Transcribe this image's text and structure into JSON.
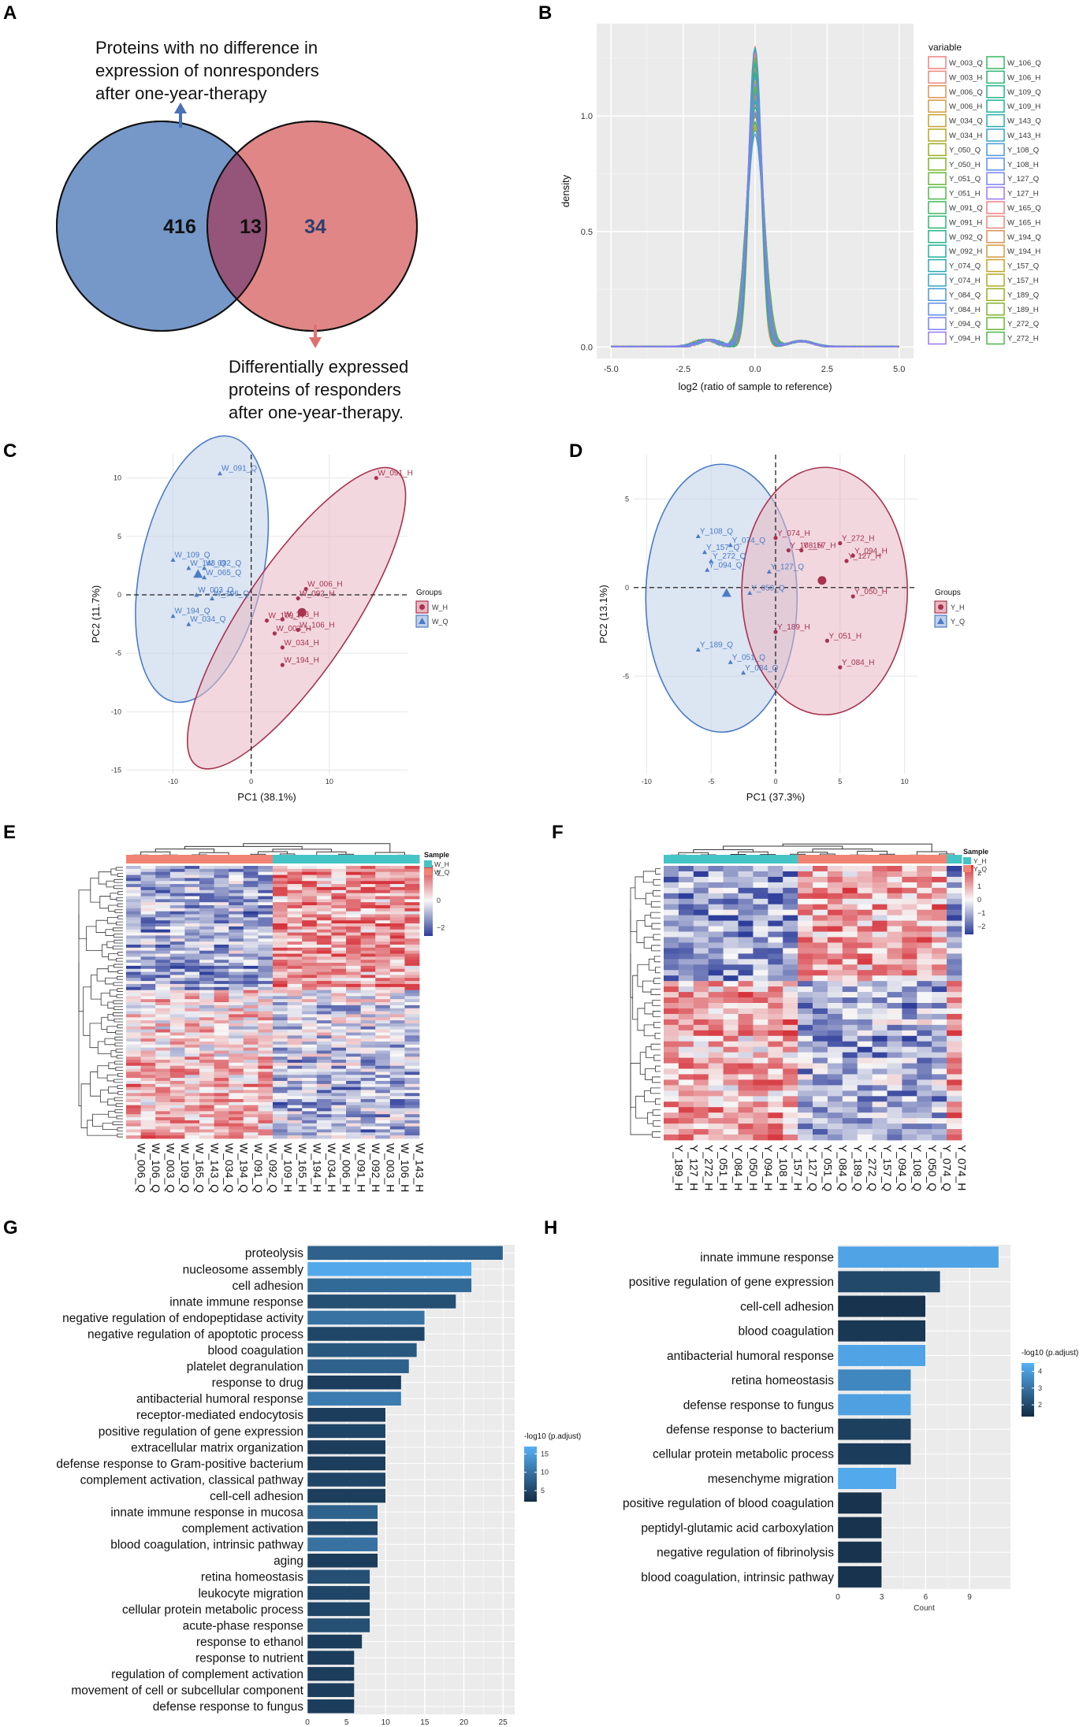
{
  "figure": {
    "panel_labels": [
      "A",
      "B",
      "C",
      "D",
      "E",
      "F",
      "G",
      "H"
    ]
  },
  "chart_data": [
    {
      "panel": "A",
      "type": "venn",
      "sets": [
        {
          "name": "nonresponders_no_difference",
          "label": "Proteins with no difference in expression of nonresponders after one-year-therapy",
          "color": "#7598c9"
        },
        {
          "name": "responders_DE",
          "label": "Differentially expressed proteins of responders after one-year-therapy.",
          "color": "#e08686"
        }
      ],
      "label_lines": {
        "top": [
          "Proteins with no difference in",
          "expression of nonresponders",
          "after one-year-therapy"
        ],
        "bottom": [
          "Differentially expressed",
          "proteins of responders",
          "after one-year-therapy."
        ]
      },
      "counts": {
        "left_only": 416,
        "overlap": 13,
        "right_only": 34
      }
    },
    {
      "panel": "B",
      "type": "line",
      "xlabel": "log2 (ratio of sample to reference)",
      "ylabel": "density",
      "xticks": [
        -5.0,
        -2.5,
        0.0,
        2.5,
        5.0
      ],
      "xtick_labels": [
        "-5.0",
        "-2.5",
        "0.0",
        "2.5",
        "5.0"
      ],
      "yticks": [
        0.0,
        0.5,
        1.0
      ],
      "ytick_labels": [
        "0.0",
        "0.5",
        "1.0"
      ],
      "xlim": [
        -5.5,
        5.5
      ],
      "ylim": [
        -0.05,
        1.4
      ],
      "legend_title": "variable",
      "legend_col1": [
        "W_003_Q",
        "W_003_H",
        "W_006_Q",
        "W_006_H",
        "W_034_Q",
        "W_034_H",
        "Y_050_Q",
        "Y_050_H",
        "Y_051_Q",
        "Y_051_H",
        "W_091_Q",
        "W_091_H",
        "W_092_Q",
        "W_092_H",
        "Y_074_Q",
        "Y_074_H",
        "Y_084_Q",
        "Y_084_H",
        "Y_094_Q",
        "Y_094_H"
      ],
      "legend_col2": [
        "W_106_Q",
        "W_106_H",
        "W_109_Q",
        "W_109_H",
        "W_143_Q",
        "W_143_H",
        "Y_108_Q",
        "Y_108_H",
        "Y_127_Q",
        "Y_127_H",
        "W_165_Q",
        "W_165_H",
        "W_194_Q",
        "W_194_H",
        "Y_157_Q",
        "Y_157_H",
        "Y_189_Q",
        "Y_189_H",
        "Y_272_Q",
        "Y_272_H"
      ],
      "legend_colors": [
        "#f08080",
        "#e8857a",
        "#dd9155",
        "#d49a3e",
        "#c4a22c",
        "#b0a920",
        "#99ad1f",
        "#82b228",
        "#68b633",
        "#4fb84a",
        "#39b85d",
        "#2bb672",
        "#22b487",
        "#20b09a",
        "#28aab0",
        "#34a3c4",
        "#4699d8",
        "#5c8de8",
        "#7a82ef",
        "#9a78ee"
      ],
      "peak_heights": [
        1.3,
        1.2,
        1.05,
        1.28,
        1.1,
        0.95,
        1.22,
        1.15,
        1.0,
        1.26,
        1.12,
        0.98,
        1.3,
        1.18,
        1.06,
        1.24,
        1.08,
        0.92,
        1.2,
        1.14,
        1.02,
        1.27,
        1.16,
        0.96,
        1.21,
        1.09,
        1.0,
        1.25,
        1.13,
        0.97,
        1.19,
        1.11,
        1.04,
        1.23,
        1.07,
        0.94,
        1.17,
        1.29,
        1.01,
        1.1
      ],
      "peak_center": 0.0
    },
    {
      "panel": "C",
      "type": "scatter",
      "xlabel": "PC1 (38.1%)",
      "ylabel": "PC2 (11.7%)",
      "xticks": [
        -10,
        0,
        10
      ],
      "xtick_labels": [
        "-10",
        "0",
        "10"
      ],
      "yticks": [
        10,
        5,
        0,
        -5,
        -10,
        -15
      ],
      "ytick_labels": [
        "10",
        "5",
        "0",
        "-5",
        "-10",
        "-15"
      ],
      "xlim": [
        -16,
        20
      ],
      "ylim": [
        -15.3,
        12
      ],
      "legend_title": "Groups",
      "groups": [
        {
          "name": "W_H",
          "color": "#a8324f",
          "fill": "#e8b8c2"
        },
        {
          "name": "W_Q",
          "color": "#4a7cc7",
          "fill": "#c0cfe8"
        }
      ],
      "points": [
        {
          "label": "W_091_Q",
          "x": -4,
          "y": 10.4,
          "group": "W_Q"
        },
        {
          "label": "W_109_Q",
          "x": -10,
          "y": 3,
          "group": "W_Q"
        },
        {
          "label": "W_143_Q",
          "x": -8,
          "y": 2.3,
          "group": "W_Q"
        },
        {
          "label": "W_092_Q",
          "x": -6,
          "y": 2.3,
          "group": "W_Q"
        },
        {
          "label": "W_065_Q",
          "x": -6,
          "y": 1.5,
          "group": "W_Q"
        },
        {
          "label": "W_003_Q",
          "x": -7,
          "y": 0,
          "group": "W_Q"
        },
        {
          "label": "W_106_Q",
          "x": -5,
          "y": -0.3,
          "group": "W_Q"
        },
        {
          "label": "W_194_Q",
          "x": -10,
          "y": -1.8,
          "group": "W_Q"
        },
        {
          "label": "W_034_Q",
          "x": -8,
          "y": -2.5,
          "group": "W_Q"
        },
        {
          "label": "W_091_H",
          "x": 16,
          "y": 10,
          "group": "W_H"
        },
        {
          "label": "W_006_H",
          "x": 7,
          "y": 0.5,
          "group": "W_H"
        },
        {
          "label": "W_092_H",
          "x": 6,
          "y": -0.3,
          "group": "W_H"
        },
        {
          "label": "W_109_H",
          "x": 2,
          "y": -2.2,
          "group": "W_H"
        },
        {
          "label": "W_143_H",
          "x": 4,
          "y": -2.1,
          "group": "W_H"
        },
        {
          "label": "W_106_H",
          "x": 6,
          "y": -3,
          "group": "W_H"
        },
        {
          "label": "W_003_H",
          "x": 3,
          "y": -3.3,
          "group": "W_H"
        },
        {
          "label": "W_034_H",
          "x": 4,
          "y": -4.5,
          "group": "W_H"
        },
        {
          "label": "W_194_H",
          "x": 4,
          "y": -6,
          "group": "W_H"
        }
      ],
      "centroids": [
        {
          "group": "W_Q",
          "x": -6.8,
          "y": 1.8
        },
        {
          "group": "W_H",
          "x": 6.5,
          "y": -1.5
        }
      ]
    },
    {
      "panel": "D",
      "type": "scatter",
      "xlabel": "PC1 (37.3%)",
      "ylabel": "PC2 (13.1%)",
      "xticks": [
        -10,
        -5,
        0,
        5,
        10
      ],
      "xtick_labels": [
        "-10",
        "-5",
        "0",
        "5",
        "10"
      ],
      "yticks": [
        5,
        0,
        -5
      ],
      "ytick_labels": [
        "5",
        "0",
        "-5"
      ],
      "xlim": [
        -11,
        11
      ],
      "ylim": [
        -10.5,
        7.5
      ],
      "legend_title": "Groups",
      "groups": [
        {
          "name": "Y_H",
          "color": "#a8324f",
          "fill": "#e8b8c2"
        },
        {
          "name": "Y_Q",
          "color": "#4a7cc7",
          "fill": "#c0cfe8"
        }
      ],
      "points": [
        {
          "label": "Y_108_Q",
          "x": -6,
          "y": 2.9,
          "group": "Y_Q"
        },
        {
          "label": "Y_074_Q",
          "x": -3.5,
          "y": 2.4,
          "group": "Y_Q"
        },
        {
          "label": "Y_157_Q",
          "x": -5.5,
          "y": 2,
          "group": "Y_Q"
        },
        {
          "label": "Y_272_Q",
          "x": -5,
          "y": 1.5,
          "group": "Y_Q"
        },
        {
          "label": "Y_094_Q",
          "x": -5.3,
          "y": 1,
          "group": "Y_Q"
        },
        {
          "label": "Y_127_Q",
          "x": -0.5,
          "y": 0.9,
          "group": "Y_Q"
        },
        {
          "label": "Y_050_Q",
          "x": -2,
          "y": -0.3,
          "group": "Y_Q"
        },
        {
          "label": "Y_189_Q",
          "x": -6,
          "y": -3.5,
          "group": "Y_Q"
        },
        {
          "label": "Y_051_Q",
          "x": -3.5,
          "y": -4.2,
          "group": "Y_Q"
        },
        {
          "label": "Y_084_Q",
          "x": -2.5,
          "y": -4.8,
          "group": "Y_Q"
        },
        {
          "label": "Y_074_H",
          "x": 0,
          "y": 2.8,
          "group": "Y_H"
        },
        {
          "label": "Y_108_H",
          "x": 1,
          "y": 2.1,
          "group": "Y_H"
        },
        {
          "label": "Y_157_H",
          "x": 2,
          "y": 2.1,
          "group": "Y_H"
        },
        {
          "label": "Y_272_H",
          "x": 5,
          "y": 2.5,
          "group": "Y_H"
        },
        {
          "label": "Y_094_H",
          "x": 6,
          "y": 1.8,
          "group": "Y_H"
        },
        {
          "label": "Y_127_H",
          "x": 5.5,
          "y": 1.5,
          "group": "Y_H"
        },
        {
          "label": "Y_050_H",
          "x": 6,
          "y": -0.5,
          "group": "Y_H"
        },
        {
          "label": "Y_189_H",
          "x": 0,
          "y": -2.5,
          "group": "Y_H"
        },
        {
          "label": "Y_051_H",
          "x": 4,
          "y": -3,
          "group": "Y_H"
        },
        {
          "label": "Y_084_H",
          "x": 5,
          "y": -4.5,
          "group": "Y_H"
        }
      ],
      "centroids": [
        {
          "group": "Y_Q",
          "x": -3.8,
          "y": -0.3
        },
        {
          "group": "Y_H",
          "x": 3.6,
          "y": 0.4
        }
      ]
    },
    {
      "panel": "E",
      "type": "heatmap",
      "legend_title": "Sample",
      "scale_ticks": [
        2,
        0,
        -2
      ],
      "scale_tick_labels": [
        "2",
        "0",
        "−2"
      ],
      "annotation_legend": [
        {
          "name": "W_H",
          "color": "#45c4c6"
        },
        {
          "name": "W_Q",
          "color": "#f08374"
        }
      ],
      "columns": [
        "W_006_Q",
        "W_106_Q",
        "W_003_Q",
        "W_109_Q",
        "W_165_Q",
        "W_143_Q",
        "W_034_Q",
        "W_194_Q",
        "W_091_Q",
        "W_092_Q",
        "W_109_H",
        "W_165_H",
        "W_194_H",
        "W_034_H",
        "W_006_H",
        "W_091_H",
        "W_092_H",
        "W_003_H",
        "W_106_H",
        "W_143_H"
      ],
      "column_groups": [
        "W_Q",
        "W_Q",
        "W_Q",
        "W_Q",
        "W_Q",
        "W_Q",
        "W_Q",
        "W_Q",
        "W_Q",
        "W_Q",
        "W_H",
        "W_H",
        "W_H",
        "W_H",
        "W_H",
        "W_H",
        "W_H",
        "W_H",
        "W_H",
        "W_H"
      ],
      "n_rows": 90
    },
    {
      "panel": "F",
      "type": "heatmap",
      "legend_title": "Sample",
      "scale_ticks": [
        2,
        1,
        0,
        -1,
        -2
      ],
      "scale_tick_labels": [
        "2",
        "1",
        "0",
        "−1",
        "−2"
      ],
      "annotation_legend": [
        {
          "name": "Y_H",
          "color": "#45c4c6"
        },
        {
          "name": "Y_Q",
          "color": "#f08374"
        }
      ],
      "columns": [
        "Y_189_H",
        "Y_127_H",
        "Y_272_H",
        "Y_051_H",
        "Y_084_H",
        "Y_050_H",
        "Y_094_H",
        "Y_108_H",
        "Y_157_H",
        "Y_127_Q",
        "Y_051_Q",
        "Y_084_Q",
        "Y_189_Q",
        "Y_272_Q",
        "Y_157_Q",
        "Y_094_Q",
        "Y_108_Q",
        "Y_050_Q",
        "Y_074_Q",
        "Y_074_H"
      ],
      "column_groups": [
        "Y_H",
        "Y_H",
        "Y_H",
        "Y_H",
        "Y_H",
        "Y_H",
        "Y_H",
        "Y_H",
        "Y_H",
        "Y_Q",
        "Y_Q",
        "Y_Q",
        "Y_Q",
        "Y_Q",
        "Y_Q",
        "Y_Q",
        "Y_Q",
        "Y_Q",
        "Y_Q",
        "Y_H"
      ],
      "n_rows": 50
    },
    {
      "panel": "G",
      "type": "bar",
      "orientation": "horizontal",
      "xlabel": "Count",
      "xticks": [
        0,
        5,
        10,
        15,
        20,
        25
      ],
      "xtick_labels": [
        "0",
        "5",
        "10",
        "15",
        "20",
        "25"
      ],
      "xlim": [
        0,
        26.5
      ],
      "legend_title": "-log10 (p.adjust)",
      "legend_ticks": [
        15,
        10,
        5
      ],
      "legend_tick_labels": [
        "15",
        "10",
        "5"
      ],
      "legend_range": [
        2,
        17
      ],
      "categories": [
        "proteolysis",
        "nucleosome assembly",
        "cell adhesion",
        "innate immune response",
        "negative regulation of endopeptidase activity",
        "negative regulation of apoptotic process",
        "blood coagulation",
        "platelet degranulation",
        "response to drug",
        "antibacterial humoral response",
        "receptor-mediated endocytosis",
        "positive regulation of gene expression",
        "extracellular matrix organization",
        "defense response to Gram-positive bacterium",
        "complement activation, classical pathway",
        "cell-cell adhesion",
        "innate immune response in mucosa",
        "complement activation",
        "blood coagulation, intrinsic pathway",
        "aging",
        "retina homeostasis",
        "leukocyte migration",
        "cellular protein metabolic process",
        "acute-phase response",
        "response to ethanol",
        "response to nutrient",
        "regulation of complement activation",
        "movement of cell or subcellular component",
        "defense response to fungus"
      ],
      "values": [
        25,
        21,
        21,
        19,
        15,
        15,
        14,
        13,
        12,
        12,
        10,
        10,
        10,
        10,
        10,
        10,
        9,
        9,
        9,
        9,
        8,
        8,
        8,
        8,
        7,
        6,
        6,
        6,
        6
      ],
      "color_values": [
        8,
        16,
        9,
        6,
        10,
        5,
        7,
        8,
        4,
        11,
        4,
        5,
        4,
        4,
        5,
        4,
        8,
        5,
        10,
        4,
        6,
        5,
        5,
        6,
        4,
        4,
        4,
        4,
        4
      ]
    },
    {
      "panel": "H",
      "type": "bar",
      "orientation": "horizontal",
      "xlabel": "Count",
      "xticks": [
        0,
        3,
        6,
        9
      ],
      "xtick_labels": [
        "0",
        "3",
        "6",
        "9"
      ],
      "xlim": [
        0,
        11.8
      ],
      "legend_title": "-log10 (p.adjust)",
      "legend_ticks": [
        4,
        3,
        2
      ],
      "legend_tick_labels": [
        "4",
        "3",
        "2"
      ],
      "legend_range": [
        1.3,
        4.5
      ],
      "categories": [
        "innate immune response",
        "positive regulation of gene expression",
        "cell-cell adhesion",
        "blood coagulation",
        "antibacterial humoral response",
        "retina homeostasis",
        "defense response to fungus",
        "defense response to bacterium",
        "cellular protein metabolic process",
        "mesenchyme migration",
        "positive regulation of blood coagulation",
        "peptidyl-glutamic acid carboxylation",
        "negative regulation of fibrinolysis",
        "blood coagulation, intrinsic pathway"
      ],
      "values": [
        11,
        7,
        6,
        6,
        6,
        5,
        5,
        5,
        5,
        4,
        3,
        3,
        3,
        3
      ],
      "color_values": [
        4.2,
        2.0,
        1.5,
        1.6,
        4.2,
        3.5,
        4.1,
        1.8,
        1.7,
        4.3,
        1.5,
        1.5,
        1.5,
        1.5
      ]
    }
  ]
}
